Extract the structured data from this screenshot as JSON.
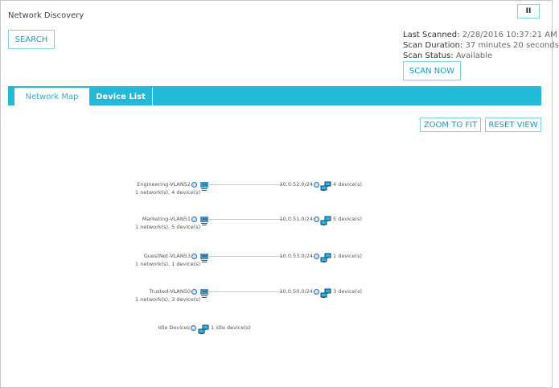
{
  "title": "Network Discovery",
  "buttons": {
    "search": "SEARCH",
    "scan_now": "SCAN NOW",
    "zoom_to_fit": "ZOOM TO FIT",
    "reset_view": "RESET VIEW",
    "pause": "II"
  },
  "scan": {
    "last_scanned_label": "Last Scanned:",
    "last_scanned": "2/28/2016 10:37:21 AM",
    "duration_label": "Scan Duration:",
    "duration": "37 minutes 20 seconds",
    "status_label": "Scan Status:",
    "status": "Available"
  },
  "tabs": [
    {
      "label": "Network Map",
      "active": true
    },
    {
      "label": "Device List",
      "active": false
    }
  ],
  "networks": [
    {
      "name": "Engineering-VLAN52",
      "summary": "1 network(s), 4 device(s)",
      "subnet": "10.0.52.0/24",
      "devices": "4 device(s)"
    },
    {
      "name": "Marketing-VLAN51",
      "summary": "1 network(s), 5 device(s)",
      "subnet": "10.0.51.0/24",
      "devices": "5 device(s)"
    },
    {
      "name": "GuestNet-VLAN53",
      "summary": "1 network(s), 1 device(s)",
      "subnet": "10.0.53.0/24",
      "devices": "1 device(s)"
    },
    {
      "name": "Trusted-VLAN50",
      "summary": "1 network(s), 3 device(s)",
      "subnet": "10.0.50.0/24",
      "devices": "3 device(s)"
    }
  ],
  "idle": {
    "name": "Idle Devices",
    "devices": "1 idle device(s)"
  },
  "colors": {
    "accent": "#22b8d8",
    "button_text": "#1a9cc0"
  }
}
